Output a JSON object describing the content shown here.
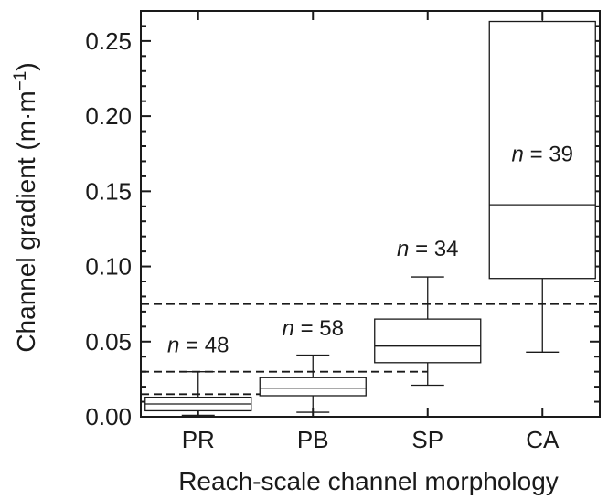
{
  "chart_data": {
    "type": "boxplot",
    "title": "",
    "xlabel": "Reach-scale channel morphology",
    "ylabel": "Channel gradient (m·m",
    "ylabel_superscript": "−1",
    "ylabel_close": ")",
    "ylim": [
      0,
      0.27
    ],
    "yticks": [
      0.0,
      0.05,
      0.1,
      0.15,
      0.2,
      0.25
    ],
    "ytick_labels": [
      "0.00",
      "0.05",
      "0.10",
      "0.15",
      "0.20",
      "0.25"
    ],
    "categories": [
      "PR",
      "PB",
      "SP",
      "CA"
    ],
    "boxes": [
      {
        "category": "PR",
        "whisker_low": 0.001,
        "q1": 0.004,
        "median": 0.0085,
        "q3": 0.013,
        "whisker_high": 0.03,
        "n_prefix": "n",
        "n_text": " = 48",
        "label_y": 0.043
      },
      {
        "category": "PB",
        "whisker_low": 0.003,
        "q1": 0.014,
        "median": 0.019,
        "q3": 0.026,
        "whisker_high": 0.041,
        "n_prefix": "n",
        "n_text": " = 58",
        "label_y": 0.054
      },
      {
        "category": "SP",
        "whisker_low": 0.021,
        "q1": 0.036,
        "median": 0.047,
        "q3": 0.065,
        "whisker_high": 0.093,
        "n_prefix": "n",
        "n_text": " = 34",
        "label_y": 0.107
      },
      {
        "category": "CA",
        "whisker_low": 0.043,
        "q1": 0.092,
        "median": 0.141,
        "q3": 0.263,
        "whisker_high": 0.27,
        "n_prefix": "n",
        "n_text": " = 39",
        "label_y": 0.17
      }
    ],
    "thresholds": [
      {
        "y": 0.015,
        "x_from": 0,
        "x_to": 1.5
      },
      {
        "y": 0.03,
        "x_from": 0,
        "x_to": 2.5
      },
      {
        "y": 0.075,
        "x_from": 0,
        "x_to": 4.0
      }
    ],
    "grid": false,
    "legend": "none"
  }
}
